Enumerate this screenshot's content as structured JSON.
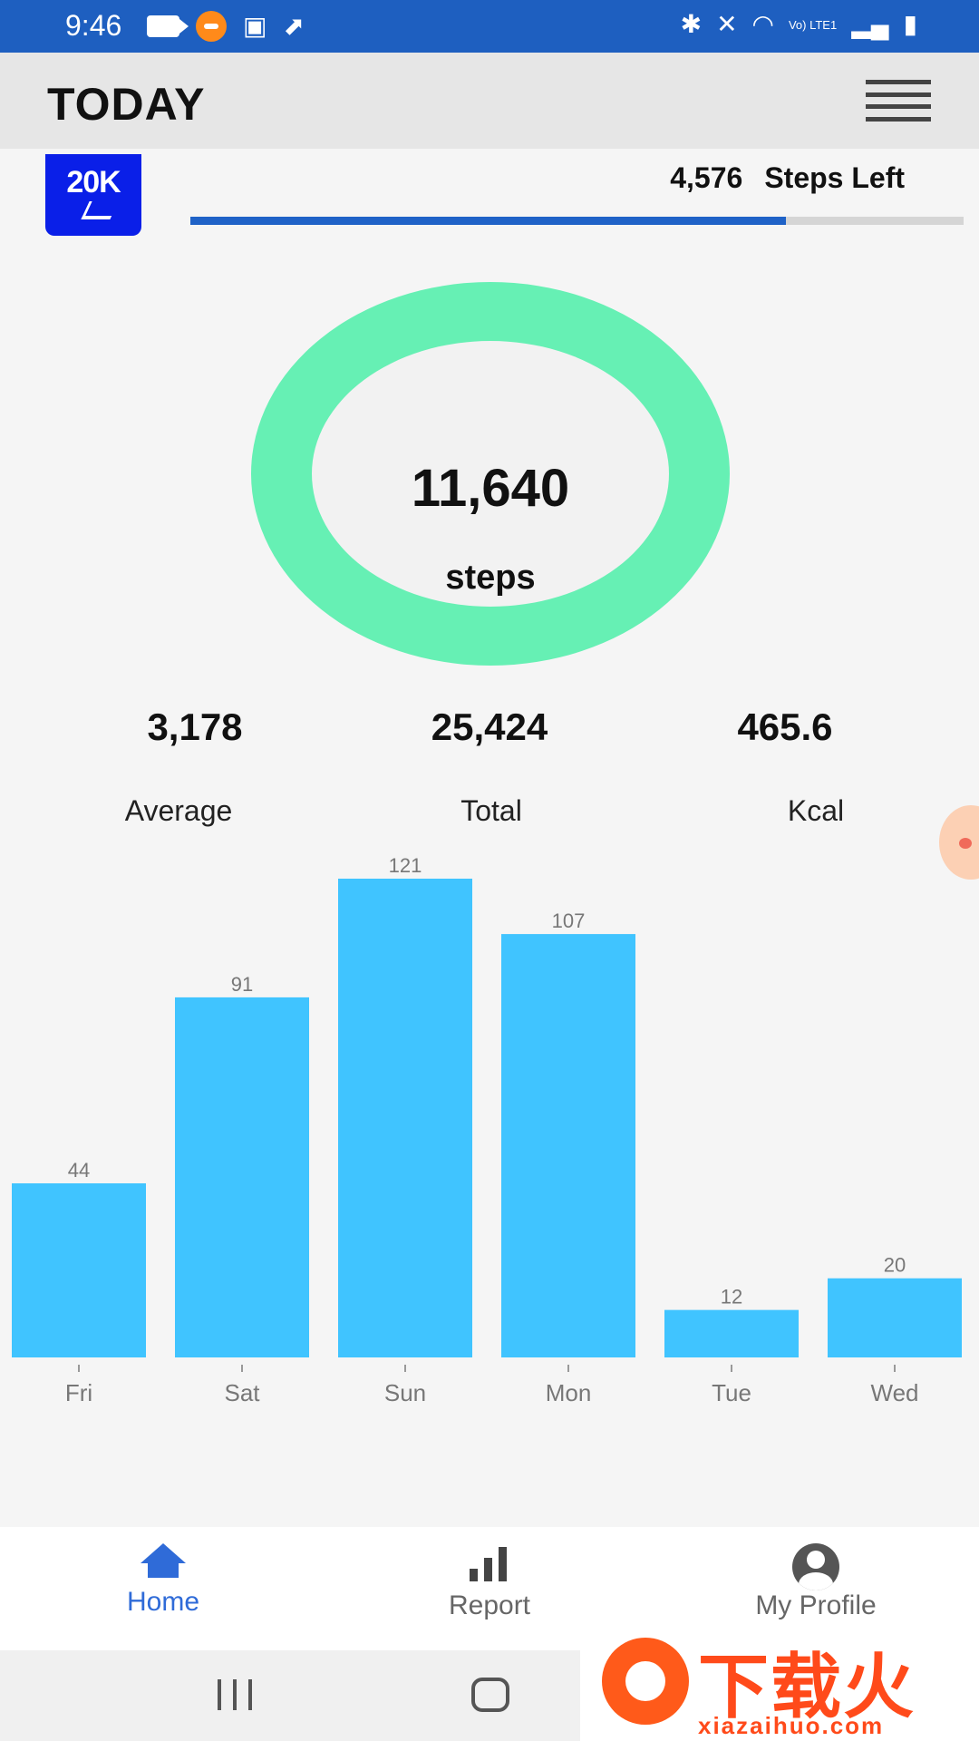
{
  "status_bar": {
    "time": "9:46",
    "left_icons": [
      "video-camera-icon",
      "screen-record-icon",
      "clipboard-icon",
      "shoe-icon"
    ],
    "right_icons": [
      "bluetooth-icon",
      "mute-icon",
      "wifi-icon",
      "lte-icon",
      "signal-icon",
      "battery-icon"
    ],
    "lte_text": "Vo) LTE1"
  },
  "header": {
    "title": "TODAY",
    "menu_icon": "hamburger-menu-icon"
  },
  "goal": {
    "badge_text": "20K",
    "steps_left_count": "4,576",
    "steps_left_label": "Steps Left",
    "progress_fraction": 0.77,
    "colors": {
      "badge": "#0a1fe8",
      "progress": "#1f62c7"
    }
  },
  "today": {
    "steps_count": "11,640",
    "steps_label": "steps",
    "ring_color": "#66f0b4"
  },
  "stats": [
    {
      "value": "3,178",
      "label": "Average"
    },
    {
      "value": "25,424",
      "label": "Total"
    },
    {
      "value": "465.6",
      "label": "Kcal"
    }
  ],
  "chart_data": {
    "type": "bar",
    "categories": [
      "Fri",
      "Sat",
      "Sun",
      "Mon",
      "Tue",
      "Wed"
    ],
    "values": [
      44,
      91,
      121,
      107,
      12,
      20
    ],
    "value_labels": [
      "44",
      "91",
      "121",
      "107",
      "12",
      "20"
    ],
    "ylim": [
      0,
      121
    ],
    "grid": false,
    "bar_color": "#40c4ff"
  },
  "bottom_nav": {
    "items": [
      {
        "label": "Home",
        "icon": "home-icon",
        "active": true
      },
      {
        "label": "Report",
        "icon": "bar-chart-icon",
        "active": false
      },
      {
        "label": "My Profile",
        "icon": "profile-icon",
        "active": false
      }
    ],
    "active_color": "#2f6bd8"
  },
  "watermark": {
    "text_cn": "下载火",
    "url": "xiazaihuo.com"
  }
}
